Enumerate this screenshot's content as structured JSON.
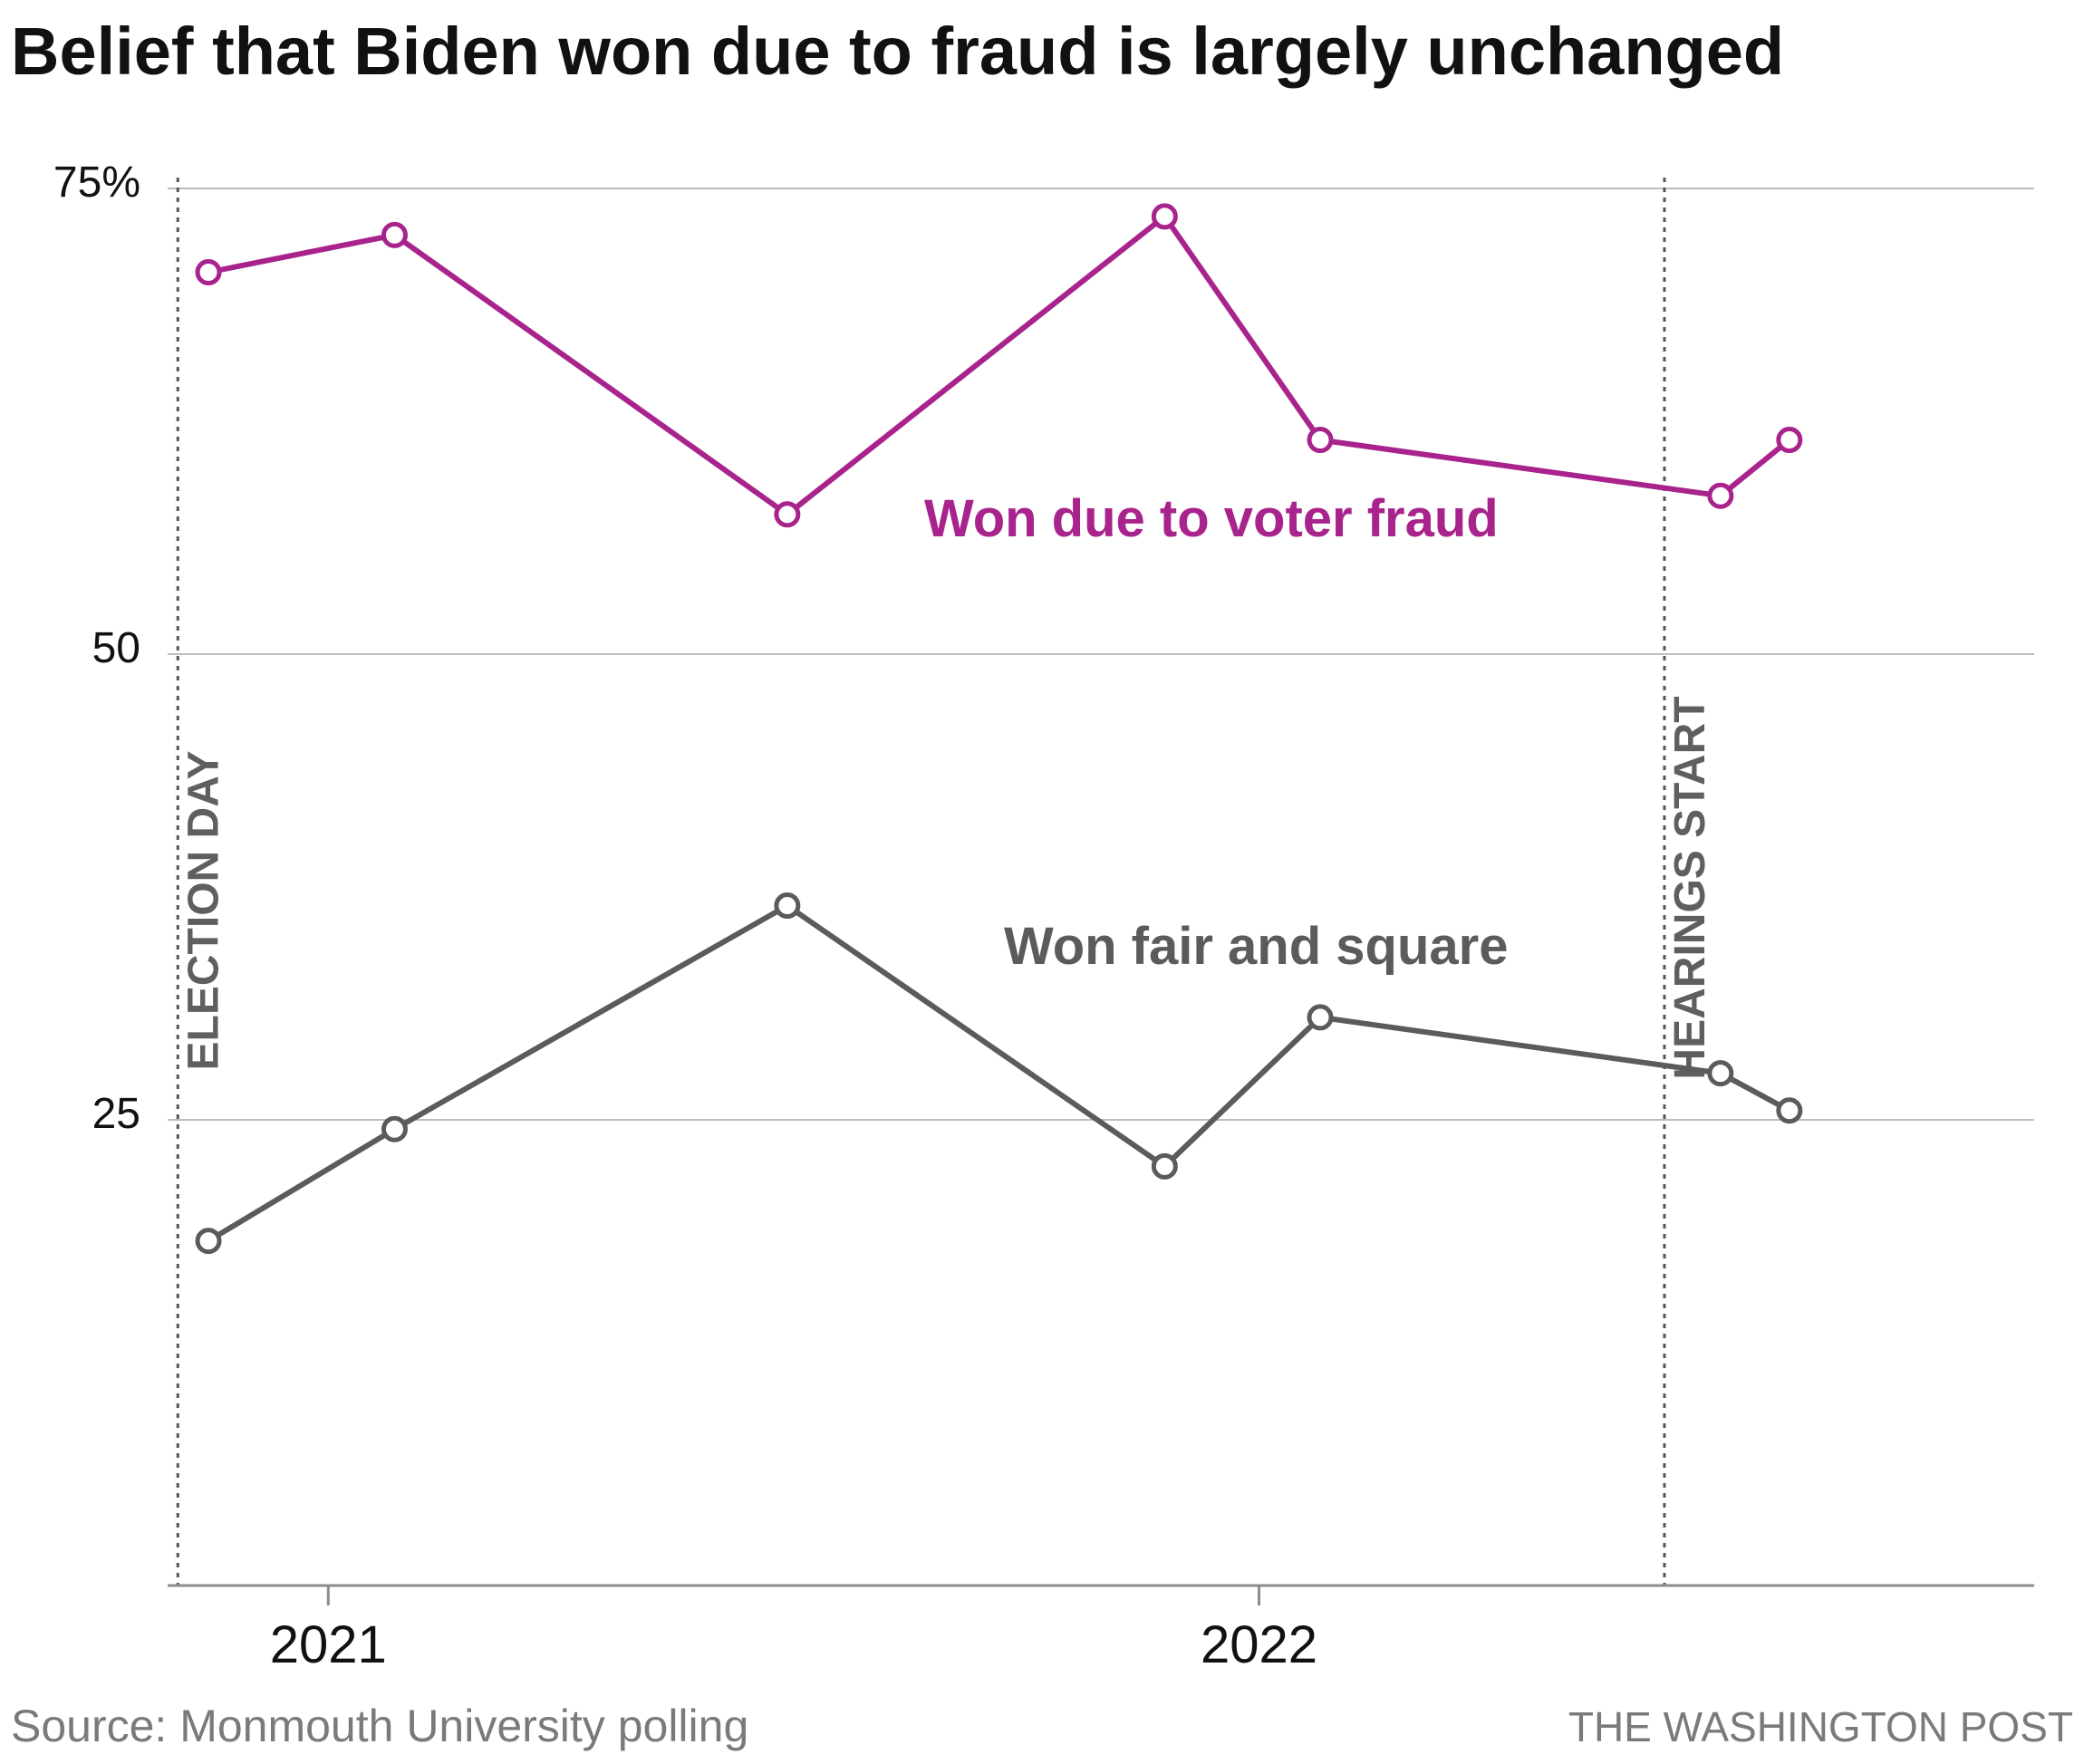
{
  "header": {
    "title": "Belief that Biden won due to fraud is largely unchanged"
  },
  "footer": {
    "source": "Source: Monmouth University polling",
    "credit": "THE WASHINGTON POST"
  },
  "colors": {
    "fraud": "#a8238c",
    "fair": "#5b5b5b",
    "grid": "#bdbdbd",
    "axis": "#8c8c8c",
    "event_line": "#555555"
  },
  "chart_data": {
    "type": "line",
    "title": "Belief that Biden won due to fraud is largely unchanged",
    "xlabel": "",
    "ylabel": "",
    "x_ticks": [
      {
        "date": "2021-01-01",
        "label": "2021"
      },
      {
        "date": "2022-01-01",
        "label": "2022"
      }
    ],
    "y_ticks": [
      {
        "value": 75,
        "label": "75%"
      },
      {
        "value": 50,
        "label": "50"
      },
      {
        "value": 25,
        "label": "25"
      }
    ],
    "xlim": [
      "2020-10-30",
      "2022-11-01"
    ],
    "ylim": [
      0,
      75
    ],
    "grid": true,
    "events": [
      {
        "date": "2020-11-03",
        "label": "ELECTION DAY"
      },
      {
        "date": "2022-06-09",
        "label": "HEARINGS START"
      }
    ],
    "series": [
      {
        "name": "Won due to voter fraud",
        "color": "#a8238c",
        "points": [
          {
            "x": "2020-11-15",
            "y": 70.5
          },
          {
            "x": "2021-01-27",
            "y": 72.5
          },
          {
            "x": "2021-06-30",
            "y": 57.5
          },
          {
            "x": "2021-11-25",
            "y": 73.5
          },
          {
            "x": "2022-01-25",
            "y": 61.5
          },
          {
            "x": "2022-07-01",
            "y": 58.5
          },
          {
            "x": "2022-07-28",
            "y": 61.5
          }
        ]
      },
      {
        "name": "Won fair and square",
        "color": "#5b5b5b",
        "points": [
          {
            "x": "2020-11-15",
            "y": 18.5
          },
          {
            "x": "2021-01-27",
            "y": 24.5
          },
          {
            "x": "2021-06-30",
            "y": 36.5
          },
          {
            "x": "2021-11-25",
            "y": 22.5
          },
          {
            "x": "2022-01-25",
            "y": 30.5
          },
          {
            "x": "2022-07-01",
            "y": 27.5
          },
          {
            "x": "2022-07-28",
            "y": 25.5
          }
        ]
      }
    ]
  }
}
